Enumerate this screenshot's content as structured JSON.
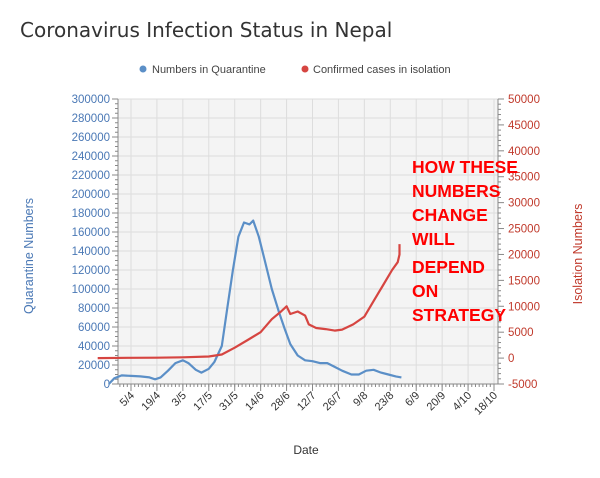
{
  "chart_data": {
    "type": "line",
    "title": "Coronavirus Infection Status in Nepal",
    "xlabel": "Date",
    "ylabel_left": "Quarantine Numbers",
    "ylabel_right": "Isolation Numbers",
    "x_ticks": [
      "5/4",
      "19/4",
      "3/5",
      "17/5",
      "31/5",
      "14/6",
      "28/6",
      "12/7",
      "26/7",
      "9/8",
      "23/8",
      "6/9",
      "20/9",
      "4/10",
      "18/10"
    ],
    "y_left_ticks": [
      "0",
      "20000",
      "40000",
      "60000",
      "80000",
      "100000",
      "120000",
      "140000",
      "160000",
      "180000",
      "200000",
      "220000",
      "240000",
      "260000",
      "280000",
      "300000"
    ],
    "y_right_ticks": [
      "-5000",
      "0",
      "5000",
      "10000",
      "15000",
      "20000",
      "25000",
      "30000",
      "35000",
      "40000",
      "45000",
      "50000"
    ],
    "ylim_left": [
      0,
      300000
    ],
    "ylim_right": [
      -5000,
      50000
    ],
    "grid": true,
    "legend_position": "top",
    "series": [
      {
        "name": "Numbers in Quarantine",
        "axis": "left",
        "color": "#5b8fc7",
        "points": [
          [
            "24/3",
            0
          ],
          [
            "27/3",
            6000
          ],
          [
            "31/3",
            9000
          ],
          [
            "5/4",
            8500
          ],
          [
            "10/4",
            8000
          ],
          [
            "15/4",
            7000
          ],
          [
            "18/4",
            5000
          ],
          [
            "21/4",
            7000
          ],
          [
            "25/4",
            14000
          ],
          [
            "29/4",
            22000
          ],
          [
            "3/5",
            25000
          ],
          [
            "6/5",
            22000
          ],
          [
            "10/5",
            15000
          ],
          [
            "13/5",
            12000
          ],
          [
            "17/5",
            16000
          ],
          [
            "20/5",
            23000
          ],
          [
            "24/5",
            40000
          ],
          [
            "27/5",
            80000
          ],
          [
            "30/5",
            120000
          ],
          [
            "2/6",
            155000
          ],
          [
            "5/6",
            170000
          ],
          [
            "8/6",
            168000
          ],
          [
            "10/6",
            172000
          ],
          [
            "13/6",
            155000
          ],
          [
            "16/6",
            132000
          ],
          [
            "20/6",
            100000
          ],
          [
            "24/6",
            75000
          ],
          [
            "27/6",
            58000
          ],
          [
            "30/6",
            42000
          ],
          [
            "4/7",
            30000
          ],
          [
            "8/7",
            25000
          ],
          [
            "12/7",
            24000
          ],
          [
            "16/7",
            22000
          ],
          [
            "20/7",
            22000
          ],
          [
            "24/7",
            18000
          ],
          [
            "28/7",
            14000
          ],
          [
            "2/8",
            10000
          ],
          [
            "6/8",
            10000
          ],
          [
            "10/8",
            14000
          ],
          [
            "14/8",
            15000
          ],
          [
            "18/8",
            12000
          ],
          [
            "22/8",
            10000
          ],
          [
            "26/8",
            8000
          ],
          [
            "29/8",
            7000
          ]
        ]
      },
      {
        "name": "Confirmed cases in isolation",
        "axis": "right",
        "color": "#d64541",
        "points": [
          [
            "18/3",
            0
          ],
          [
            "5/4",
            50
          ],
          [
            "19/4",
            80
          ],
          [
            "3/5",
            150
          ],
          [
            "17/5",
            300
          ],
          [
            "24/5",
            700
          ],
          [
            "31/5",
            2000
          ],
          [
            "7/6",
            3500
          ],
          [
            "14/6",
            5000
          ],
          [
            "20/6",
            7500
          ],
          [
            "25/6",
            9000
          ],
          [
            "28/6",
            10000
          ],
          [
            "30/6",
            8500
          ],
          [
            "4/7",
            9000
          ],
          [
            "8/7",
            8200
          ],
          [
            "10/7",
            6500
          ],
          [
            "14/7",
            5800
          ],
          [
            "19/7",
            5600
          ],
          [
            "24/7",
            5300
          ],
          [
            "28/7",
            5500
          ],
          [
            "3/8",
            6500
          ],
          [
            "9/8",
            8000
          ],
          [
            "14/8",
            11000
          ],
          [
            "19/8",
            14000
          ],
          [
            "24/8",
            17000
          ],
          [
            "27/8",
            18500
          ],
          [
            "28/8",
            20000
          ],
          [
            "28/8",
            22000
          ]
        ]
      }
    ]
  },
  "annotation": {
    "lines": [
      "HOW THESE",
      "NUMBERS",
      "CHANGE",
      "WILL",
      "DEPEND",
      "ON",
      "STRATEGY"
    ]
  }
}
